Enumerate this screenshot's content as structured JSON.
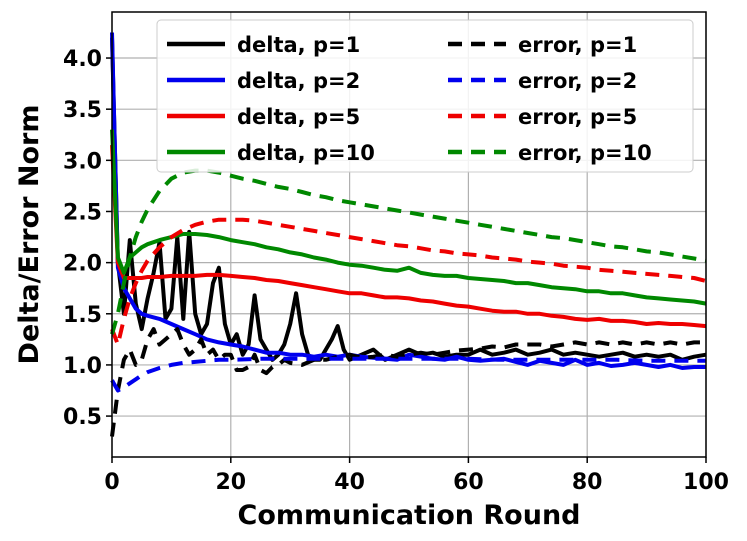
{
  "chart_data": {
    "type": "line",
    "xlabel": "Communication Round",
    "ylabel": "Delta/Error Norm",
    "xlim": [
      0,
      100
    ],
    "ylim": [
      0.1,
      4.45
    ],
    "xticks": [
      0,
      20,
      40,
      60,
      80,
      100
    ],
    "yticks": [
      0.5,
      1.0,
      1.5,
      2.0,
      2.5,
      3.0,
      3.5,
      4.0
    ],
    "ytick_labels": [
      "0.5",
      "1.0",
      "1.5",
      "2.0",
      "2.5",
      "3.0",
      "3.5",
      "4.0"
    ],
    "grid": true,
    "legend_position": "top-right",
    "series": [
      {
        "name": "delta, p=1",
        "color": "#000000",
        "style": "solid",
        "x": [
          0,
          1,
          2,
          3,
          4,
          5,
          6,
          7,
          8,
          9,
          10,
          11,
          12,
          13,
          14,
          15,
          16,
          17,
          18,
          19,
          20,
          21,
          22,
          23,
          24,
          25,
          26,
          27,
          28,
          29,
          30,
          31,
          32,
          33,
          34,
          35,
          36,
          37,
          38,
          39,
          40,
          42,
          44,
          46,
          48,
          50,
          52,
          54,
          56,
          58,
          60,
          62,
          64,
          66,
          68,
          70,
          72,
          74,
          76,
          78,
          80,
          82,
          84,
          86,
          88,
          90,
          92,
          94,
          96,
          98,
          100
        ],
        "y": [
          4.2,
          2.0,
          1.5,
          2.22,
          1.6,
          1.35,
          1.65,
          1.9,
          2.2,
          1.45,
          1.55,
          2.25,
          1.45,
          2.3,
          1.5,
          1.3,
          1.4,
          1.8,
          1.95,
          1.4,
          1.2,
          1.3,
          1.1,
          1.2,
          1.68,
          1.25,
          1.15,
          1.05,
          1.1,
          1.2,
          1.4,
          1.7,
          1.3,
          1.1,
          1.05,
          1.05,
          1.15,
          1.25,
          1.38,
          1.15,
          1.05,
          1.1,
          1.15,
          1.05,
          1.1,
          1.15,
          1.1,
          1.12,
          1.08,
          1.1,
          1.1,
          1.15,
          1.1,
          1.12,
          1.15,
          1.1,
          1.12,
          1.15,
          1.1,
          1.12,
          1.1,
          1.08,
          1.1,
          1.12,
          1.08,
          1.1,
          1.08,
          1.1,
          1.05,
          1.08,
          1.1
        ]
      },
      {
        "name": "delta, p=2",
        "color": "#0000ee",
        "style": "solid",
        "x": [
          0,
          1,
          2,
          3,
          4,
          5,
          6,
          8,
          10,
          12,
          14,
          16,
          18,
          20,
          22,
          24,
          26,
          28,
          30,
          32,
          34,
          36,
          38,
          40,
          42,
          44,
          46,
          48,
          50,
          52,
          54,
          56,
          58,
          60,
          62,
          64,
          66,
          68,
          70,
          72,
          74,
          76,
          78,
          80,
          82,
          84,
          86,
          88,
          90,
          92,
          94,
          96,
          98,
          100
        ],
        "y": [
          4.25,
          1.95,
          1.75,
          1.65,
          1.55,
          1.5,
          1.48,
          1.45,
          1.4,
          1.35,
          1.3,
          1.25,
          1.22,
          1.2,
          1.18,
          1.15,
          1.12,
          1.12,
          1.1,
          1.1,
          1.08,
          1.1,
          1.08,
          1.1,
          1.08,
          1.07,
          1.06,
          1.05,
          1.1,
          1.08,
          1.06,
          1.05,
          1.08,
          1.05,
          1.04,
          1.05,
          1.06,
          1.03,
          1.0,
          1.04,
          1.02,
          1.0,
          1.05,
          1.0,
          1.02,
          0.99,
          1.0,
          1.02,
          1.0,
          0.98,
          1.0,
          0.97,
          0.98,
          0.98
        ]
      },
      {
        "name": "delta, p=5",
        "color": "#ee0000",
        "style": "solid",
        "x": [
          0,
          1,
          2,
          3,
          4,
          5,
          6,
          8,
          10,
          12,
          14,
          16,
          18,
          20,
          22,
          24,
          26,
          28,
          30,
          32,
          34,
          36,
          38,
          40,
          42,
          44,
          46,
          48,
          50,
          52,
          54,
          56,
          58,
          60,
          62,
          64,
          66,
          68,
          70,
          72,
          74,
          76,
          78,
          80,
          82,
          84,
          86,
          88,
          90,
          92,
          94,
          96,
          98,
          100
        ],
        "y": [
          3.15,
          2.0,
          1.85,
          1.85,
          1.85,
          1.85,
          1.86,
          1.86,
          1.87,
          1.87,
          1.87,
          1.88,
          1.88,
          1.87,
          1.86,
          1.85,
          1.83,
          1.82,
          1.8,
          1.78,
          1.76,
          1.74,
          1.72,
          1.7,
          1.7,
          1.68,
          1.66,
          1.66,
          1.65,
          1.63,
          1.62,
          1.6,
          1.58,
          1.57,
          1.55,
          1.53,
          1.52,
          1.52,
          1.5,
          1.5,
          1.48,
          1.47,
          1.45,
          1.44,
          1.45,
          1.43,
          1.43,
          1.42,
          1.4,
          1.41,
          1.4,
          1.4,
          1.39,
          1.38
        ]
      },
      {
        "name": "delta, p=10",
        "color": "#008800",
        "style": "solid",
        "x": [
          0,
          1,
          2,
          3,
          4,
          5,
          6,
          8,
          10,
          12,
          14,
          16,
          18,
          20,
          22,
          24,
          26,
          28,
          30,
          32,
          34,
          36,
          38,
          40,
          42,
          44,
          46,
          48,
          50,
          52,
          54,
          56,
          58,
          60,
          62,
          64,
          66,
          68,
          70,
          72,
          74,
          76,
          78,
          80,
          82,
          84,
          86,
          88,
          90,
          92,
          94,
          96,
          98,
          100
        ],
        "y": [
          3.3,
          2.05,
          1.9,
          2.05,
          2.1,
          2.15,
          2.18,
          2.22,
          2.25,
          2.28,
          2.28,
          2.27,
          2.25,
          2.22,
          2.2,
          2.18,
          2.15,
          2.13,
          2.1,
          2.08,
          2.05,
          2.03,
          2.0,
          1.98,
          1.97,
          1.95,
          1.93,
          1.92,
          1.95,
          1.9,
          1.88,
          1.87,
          1.87,
          1.85,
          1.84,
          1.83,
          1.82,
          1.8,
          1.8,
          1.78,
          1.76,
          1.75,
          1.74,
          1.72,
          1.72,
          1.7,
          1.7,
          1.68,
          1.66,
          1.65,
          1.64,
          1.63,
          1.62,
          1.6
        ]
      },
      {
        "name": "error, p=1",
        "color": "#000000",
        "style": "dashed",
        "x": [
          0,
          1,
          2,
          3,
          4,
          5,
          6,
          7,
          8,
          9,
          10,
          11,
          12,
          13,
          14,
          15,
          16,
          17,
          18,
          19,
          20,
          21,
          22,
          23,
          24,
          25,
          26,
          27,
          28,
          29,
          30,
          32,
          34,
          36,
          38,
          40,
          42,
          44,
          46,
          48,
          50,
          52,
          54,
          56,
          58,
          60,
          62,
          64,
          66,
          68,
          70,
          72,
          74,
          76,
          78,
          80,
          82,
          84,
          86,
          88,
          90,
          92,
          94,
          96,
          98,
          100
        ],
        "y": [
          0.3,
          0.75,
          1.05,
          1.15,
          1.0,
          1.05,
          1.25,
          1.35,
          1.2,
          1.25,
          1.3,
          1.35,
          1.2,
          1.1,
          1.15,
          1.25,
          1.1,
          1.15,
          1.05,
          1.1,
          1.1,
          0.95,
          0.95,
          0.98,
          1.1,
          0.95,
          0.92,
          0.98,
          1.0,
          1.05,
          1.02,
          1.0,
          1.05,
          1.05,
          1.08,
          1.1,
          1.07,
          1.08,
          1.1,
          1.08,
          1.1,
          1.12,
          1.1,
          1.12,
          1.14,
          1.15,
          1.16,
          1.18,
          1.17,
          1.2,
          1.2,
          1.2,
          1.18,
          1.2,
          1.22,
          1.2,
          1.22,
          1.2,
          1.22,
          1.2,
          1.22,
          1.2,
          1.22,
          1.2,
          1.22,
          1.22
        ]
      },
      {
        "name": "error, p=2",
        "color": "#0000ee",
        "style": "dashed",
        "x": [
          0,
          1,
          2,
          3,
          4,
          5,
          6,
          8,
          10,
          12,
          14,
          16,
          18,
          20,
          25,
          30,
          35,
          40,
          45,
          50,
          55,
          60,
          65,
          70,
          75,
          80,
          85,
          90,
          95,
          100
        ],
        "y": [
          0.85,
          0.75,
          0.78,
          0.82,
          0.86,
          0.9,
          0.93,
          0.97,
          1.0,
          1.02,
          1.03,
          1.04,
          1.05,
          1.05,
          1.06,
          1.06,
          1.06,
          1.06,
          1.06,
          1.06,
          1.06,
          1.06,
          1.05,
          1.05,
          1.05,
          1.05,
          1.05,
          1.04,
          1.04,
          1.04
        ]
      },
      {
        "name": "error, p=5",
        "color": "#ee0000",
        "style": "dashed",
        "x": [
          0,
          1,
          2,
          3,
          4,
          5,
          6,
          8,
          10,
          12,
          14,
          16,
          18,
          20,
          22,
          24,
          26,
          28,
          30,
          32,
          34,
          36,
          38,
          40,
          42,
          44,
          46,
          48,
          50,
          52,
          54,
          56,
          58,
          60,
          62,
          64,
          66,
          68,
          70,
          72,
          74,
          76,
          78,
          80,
          82,
          84,
          86,
          88,
          90,
          92,
          94,
          96,
          98,
          100
        ],
        "y": [
          1.35,
          1.2,
          1.45,
          1.65,
          1.8,
          1.92,
          2.02,
          2.15,
          2.25,
          2.32,
          2.37,
          2.4,
          2.42,
          2.42,
          2.42,
          2.41,
          2.39,
          2.37,
          2.35,
          2.33,
          2.31,
          2.29,
          2.27,
          2.25,
          2.23,
          2.21,
          2.19,
          2.17,
          2.16,
          2.14,
          2.12,
          2.11,
          2.09,
          2.08,
          2.07,
          2.05,
          2.04,
          2.03,
          2.01,
          2.0,
          1.99,
          1.97,
          1.96,
          1.95,
          1.93,
          1.92,
          1.91,
          1.9,
          1.89,
          1.88,
          1.87,
          1.86,
          1.85,
          1.82
        ]
      },
      {
        "name": "error, p=10",
        "color": "#008800",
        "style": "dashed",
        "x": [
          0,
          1,
          2,
          3,
          4,
          5,
          6,
          8,
          10,
          12,
          14,
          16,
          18,
          20,
          22,
          24,
          26,
          28,
          30,
          32,
          34,
          36,
          38,
          40,
          42,
          44,
          46,
          48,
          50,
          52,
          54,
          56,
          58,
          60,
          62,
          64,
          66,
          68,
          70,
          72,
          74,
          76,
          78,
          80,
          82,
          84,
          86,
          88,
          90,
          92,
          94,
          96,
          98,
          100
        ],
        "y": [
          1.3,
          1.5,
          1.8,
          2.05,
          2.25,
          2.4,
          2.52,
          2.7,
          2.82,
          2.88,
          2.9,
          2.9,
          2.88,
          2.85,
          2.82,
          2.8,
          2.77,
          2.74,
          2.72,
          2.69,
          2.66,
          2.64,
          2.61,
          2.59,
          2.57,
          2.55,
          2.53,
          2.51,
          2.49,
          2.47,
          2.45,
          2.43,
          2.41,
          2.39,
          2.37,
          2.35,
          2.33,
          2.31,
          2.29,
          2.27,
          2.25,
          2.24,
          2.22,
          2.2,
          2.18,
          2.16,
          2.15,
          2.13,
          2.11,
          2.1,
          2.08,
          2.06,
          2.04,
          2.02
        ]
      }
    ]
  }
}
